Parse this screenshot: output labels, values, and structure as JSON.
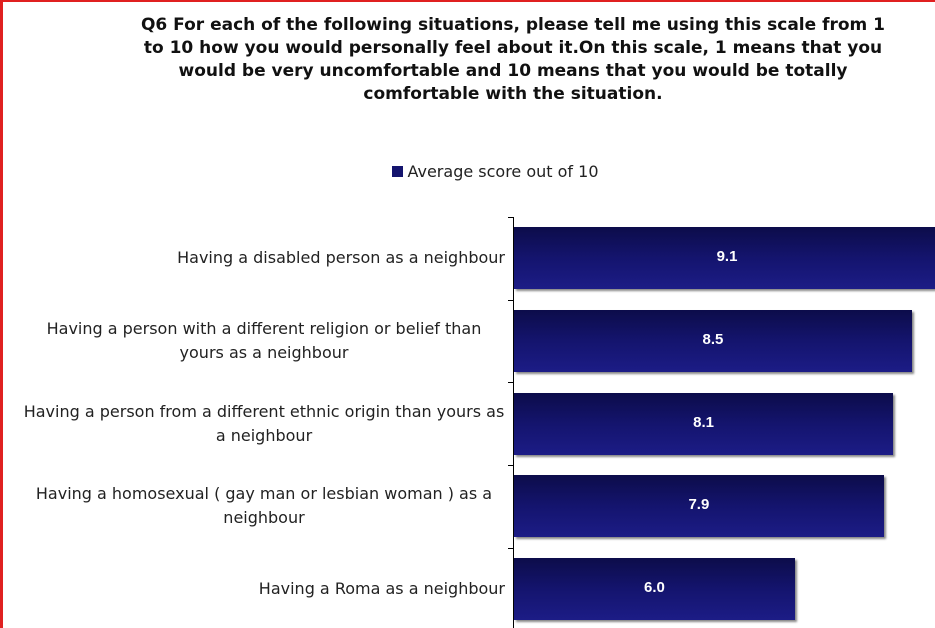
{
  "chart_data": {
    "type": "bar",
    "orientation": "horizontal",
    "title": "Q6 For each of the following situations, please tell me using this scale from 1 to 10 how you would personally feel about it.On this scale, 1 means that you would be very uncomfortable and 10 means that you would be totally comfortable with the situation.",
    "categories": [
      "Having a disabled person as a neighbour",
      "Having a person with a different  religion or belief than yours as a neighbour",
      "Having a person from a different ethnic origin than yours as a neighbour",
      "Having a homosexual ( gay man or lesbian woman ) as a neighbour",
      "Having a Roma as a neighbour"
    ],
    "series": [
      {
        "name": "Average score out of 10",
        "color": "#14146e",
        "values": [
          9.1,
          8.5,
          8.1,
          7.9,
          6.0
        ],
        "value_labels": [
          "9.1",
          "8.5",
          "8.1",
          "7.9",
          "6.0"
        ]
      }
    ]
  }
}
